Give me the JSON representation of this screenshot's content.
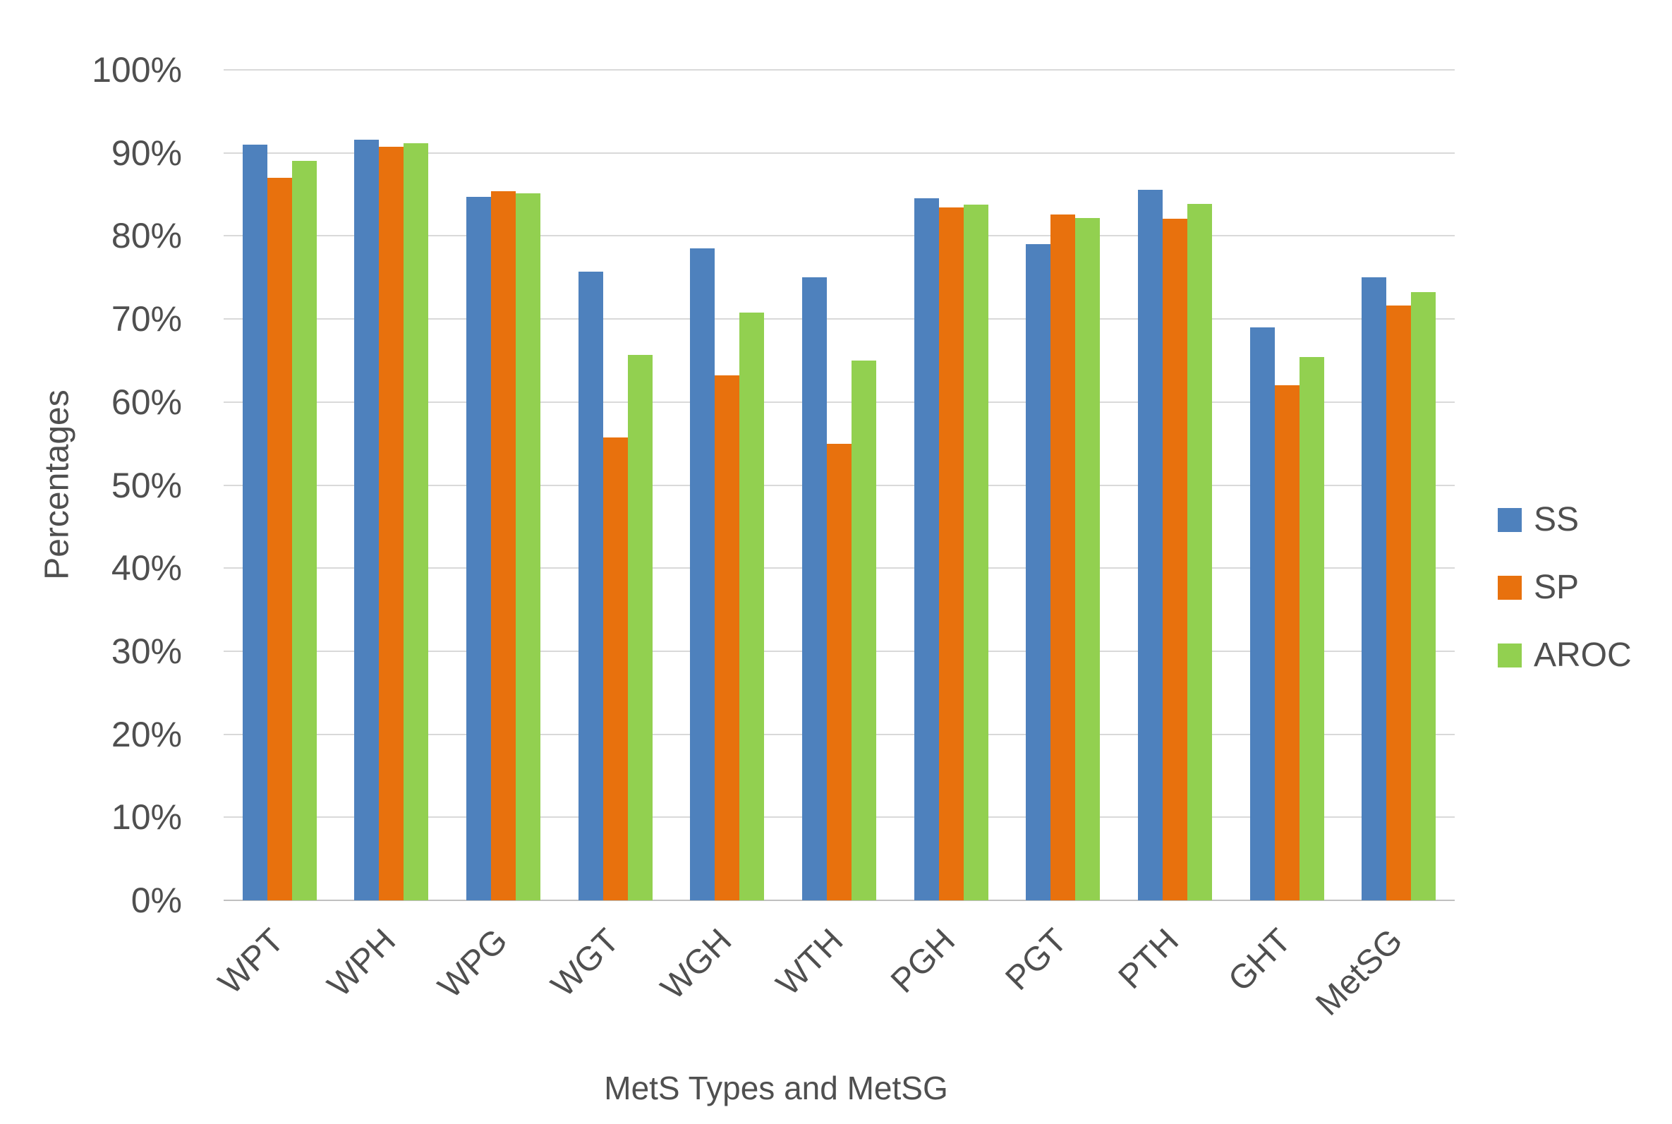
{
  "chart_data": {
    "type": "bar",
    "title": "",
    "xlabel": "MetS Types and MetSG",
    "ylabel": "Percentages",
    "ylim": [
      0,
      100
    ],
    "ytick_step": 10,
    "ytick_labels": [
      "0%",
      "10%",
      "20%",
      "30%",
      "40%",
      "50%",
      "60%",
      "70%",
      "80%",
      "90%",
      "100%"
    ],
    "categories": [
      "WPT",
      "WPH",
      "WPG",
      "WGT",
      "WGH",
      "WTH",
      "PGH",
      "PGT",
      "PTH",
      "GHT",
      "MetSG"
    ],
    "series": [
      {
        "name": "SS",
        "color": "#4E81BD",
        "values": [
          91.0,
          91.6,
          84.7,
          75.7,
          78.5,
          75.0,
          84.5,
          79.0,
          85.6,
          69.0,
          75.0
        ]
      },
      {
        "name": "SP",
        "color": "#E8710D",
        "values": [
          87.0,
          90.7,
          85.4,
          55.7,
          63.2,
          55.0,
          83.4,
          82.6,
          82.1,
          62.0,
          71.6
        ]
      },
      {
        "name": "AROC",
        "color": "#92D050",
        "values": [
          89.0,
          91.2,
          85.1,
          65.7,
          70.8,
          65.0,
          83.8,
          82.2,
          83.9,
          65.4,
          73.2
        ]
      }
    ],
    "legend_position": "right",
    "grid": true
  },
  "colors": {
    "background": "#FFFFFF",
    "gridline": "#D9D9D9",
    "axis_line": "#C0C0C0",
    "text": "#4F4F4F"
  }
}
